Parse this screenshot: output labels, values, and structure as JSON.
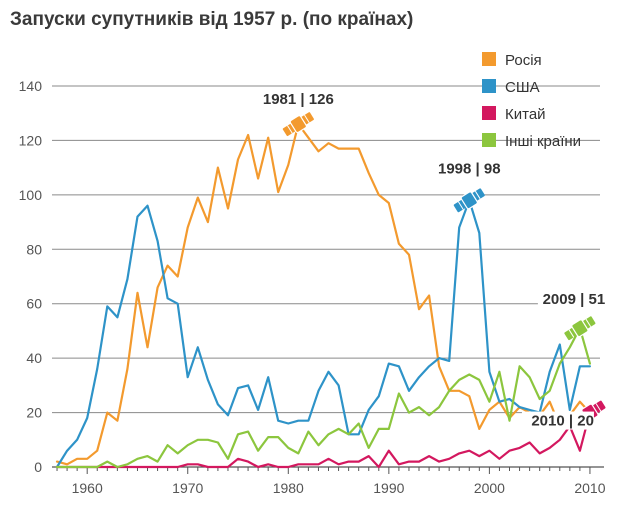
{
  "chart_data": {
    "type": "line",
    "title": "Запуски супутників від 1957 р. (по країнах)",
    "xlabel": "",
    "ylabel": "",
    "xlim": [
      1956.5,
      2011
    ],
    "ylim": [
      0,
      140
    ],
    "y_ticks": [
      "0",
      "20",
      "40",
      "60",
      "80",
      "100",
      "120",
      "140"
    ],
    "x_ticks": [
      "1960",
      "1970",
      "1980",
      "1990",
      "2000",
      "2010"
    ],
    "grid": true,
    "legend_position": "top-right",
    "series": [
      {
        "name": "Росія",
        "color": "#f39a2e",
        "x": [
          1957,
          1958,
          1959,
          1960,
          1961,
          1962,
          1963,
          1964,
          1965,
          1966,
          1967,
          1968,
          1969,
          1970,
          1971,
          1972,
          1973,
          1974,
          1975,
          1976,
          1977,
          1978,
          1979,
          1980,
          1981,
          1982,
          1983,
          1984,
          1985,
          1986,
          1987,
          1988,
          1989,
          1990,
          1991,
          1992,
          1993,
          1994,
          1995,
          1996,
          1997,
          1998,
          1999,
          2000,
          2001,
          2002,
          2003,
          2004,
          2005,
          2006,
          2007,
          2008,
          2009,
          2010
        ],
        "values": [
          2,
          1,
          3,
          3,
          6,
          20,
          17,
          36,
          64,
          44,
          66,
          74,
          70,
          88,
          99,
          90,
          110,
          95,
          113,
          122,
          106,
          121,
          101,
          111,
          126,
          121,
          116,
          119,
          117,
          117,
          117,
          108,
          100,
          97,
          82,
          78,
          58,
          63,
          37,
          28,
          28,
          26,
          14,
          21,
          24,
          18,
          22,
          20,
          19,
          24,
          15,
          19,
          24,
          20
        ]
      },
      {
        "name": "США",
        "color": "#2e93c8",
        "x": [
          1957,
          1958,
          1959,
          1960,
          1961,
          1962,
          1963,
          1964,
          1965,
          1966,
          1967,
          1968,
          1969,
          1970,
          1971,
          1972,
          1973,
          1974,
          1975,
          1976,
          1977,
          1978,
          1979,
          1980,
          1981,
          1982,
          1983,
          1984,
          1985,
          1986,
          1987,
          1988,
          1989,
          1990,
          1991,
          1992,
          1993,
          1994,
          1995,
          1996,
          1997,
          1998,
          1999,
          2000,
          2001,
          2002,
          2003,
          2004,
          2005,
          2006,
          2007,
          2008,
          2009,
          2010
        ],
        "values": [
          0,
          6,
          10,
          18,
          36,
          59,
          55,
          69,
          92,
          96,
          83,
          62,
          60,
          33,
          44,
          32,
          23,
          19,
          29,
          30,
          21,
          33,
          17,
          16,
          17,
          17,
          28,
          35,
          30,
          12,
          12,
          21,
          26,
          38,
          37,
          28,
          33,
          37,
          40,
          39,
          88,
          98,
          86,
          35,
          24,
          25,
          22,
          21,
          20,
          35,
          45,
          21,
          37,
          37
        ]
      },
      {
        "name": "Китай",
        "color": "#d3185f",
        "x": [
          1957,
          1958,
          1959,
          1960,
          1961,
          1962,
          1963,
          1964,
          1965,
          1966,
          1967,
          1968,
          1969,
          1970,
          1971,
          1972,
          1973,
          1974,
          1975,
          1976,
          1977,
          1978,
          1979,
          1980,
          1981,
          1982,
          1983,
          1984,
          1985,
          1986,
          1987,
          1988,
          1989,
          1990,
          1991,
          1992,
          1993,
          1994,
          1995,
          1996,
          1997,
          1998,
          1999,
          2000,
          2001,
          2002,
          2003,
          2004,
          2005,
          2006,
          2007,
          2008,
          2009,
          2010
        ],
        "values": [
          0,
          0,
          0,
          0,
          0,
          0,
          0,
          0,
          0,
          0,
          0,
          0,
          0,
          1,
          1,
          0,
          0,
          0,
          3,
          2,
          0,
          1,
          0,
          0,
          1,
          1,
          1,
          3,
          1,
          2,
          2,
          4,
          0,
          6,
          1,
          2,
          2,
          4,
          2,
          3,
          5,
          6,
          4,
          6,
          3,
          6,
          7,
          9,
          5,
          7,
          10,
          15,
          6,
          20
        ]
      },
      {
        "name": "Інші країни",
        "color": "#8cc63e",
        "x": [
          1957,
          1958,
          1959,
          1960,
          1961,
          1962,
          1963,
          1964,
          1965,
          1966,
          1967,
          1968,
          1969,
          1970,
          1971,
          1972,
          1973,
          1974,
          1975,
          1976,
          1977,
          1978,
          1979,
          1980,
          1981,
          1982,
          1983,
          1984,
          1985,
          1986,
          1987,
          1988,
          1989,
          1990,
          1991,
          1992,
          1993,
          1994,
          1995,
          1996,
          1997,
          1998,
          1999,
          2000,
          2001,
          2002,
          2003,
          2004,
          2005,
          2006,
          2007,
          2008,
          2009,
          2010
        ],
        "values": [
          0,
          0,
          0,
          0,
          0,
          2,
          0,
          1,
          3,
          4,
          2,
          8,
          5,
          8,
          10,
          10,
          9,
          3,
          12,
          13,
          6,
          11,
          11,
          7,
          5,
          13,
          8,
          12,
          14,
          12,
          16,
          7,
          14,
          14,
          27,
          20,
          22,
          19,
          22,
          28,
          32,
          34,
          32,
          24,
          35,
          17,
          37,
          33,
          25,
          28,
          38,
          44,
          51,
          38
        ]
      }
    ],
    "annotations": [
      {
        "text": "1981 | 126",
        "series": "Росія",
        "x": 1981,
        "y": 126
      },
      {
        "text": "1998 | 98",
        "series": "США",
        "x": 1998,
        "y": 98
      },
      {
        "text": "2009 | 51",
        "series": "Інші країни",
        "x": 2009,
        "y": 51
      },
      {
        "text": "2010 | 20",
        "series": "Китай",
        "x": 2010,
        "y": 20
      }
    ]
  }
}
